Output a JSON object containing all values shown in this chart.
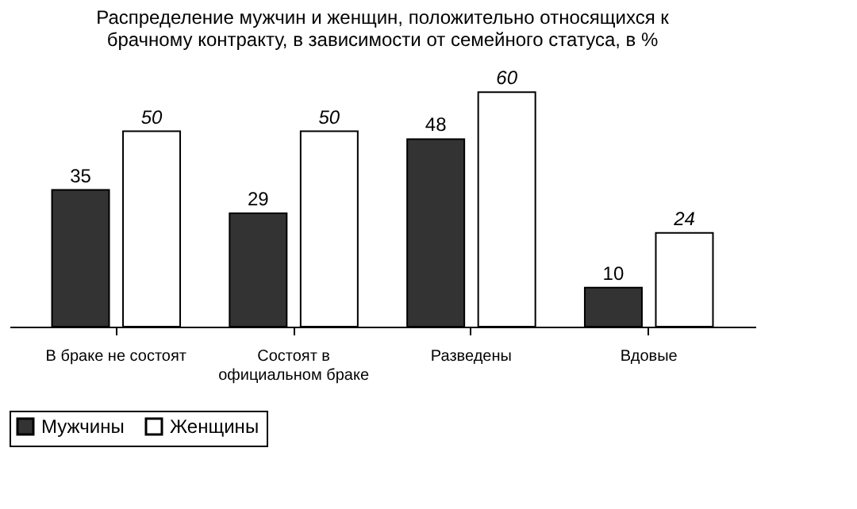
{
  "chart_data": {
    "type": "bar",
    "title": [
      "Распределение мужчин и женщин,  положительно относящихся к",
      "брачному контракту, в зависимости от семейного статуса, в %"
    ],
    "categories": [
      "В браке не состоят",
      "Состоят в\nофициальном браке",
      "Разведены",
      "Вдовые"
    ],
    "series": [
      {
        "name": "Мужчины",
        "color": "#333333",
        "values": [
          35,
          29,
          48,
          10
        ]
      },
      {
        "name": "Женщины",
        "color": "#ffffff",
        "values": [
          50,
          50,
          60,
          24
        ]
      }
    ],
    "data_labels": true,
    "legend": "bottom",
    "grid": false
  }
}
